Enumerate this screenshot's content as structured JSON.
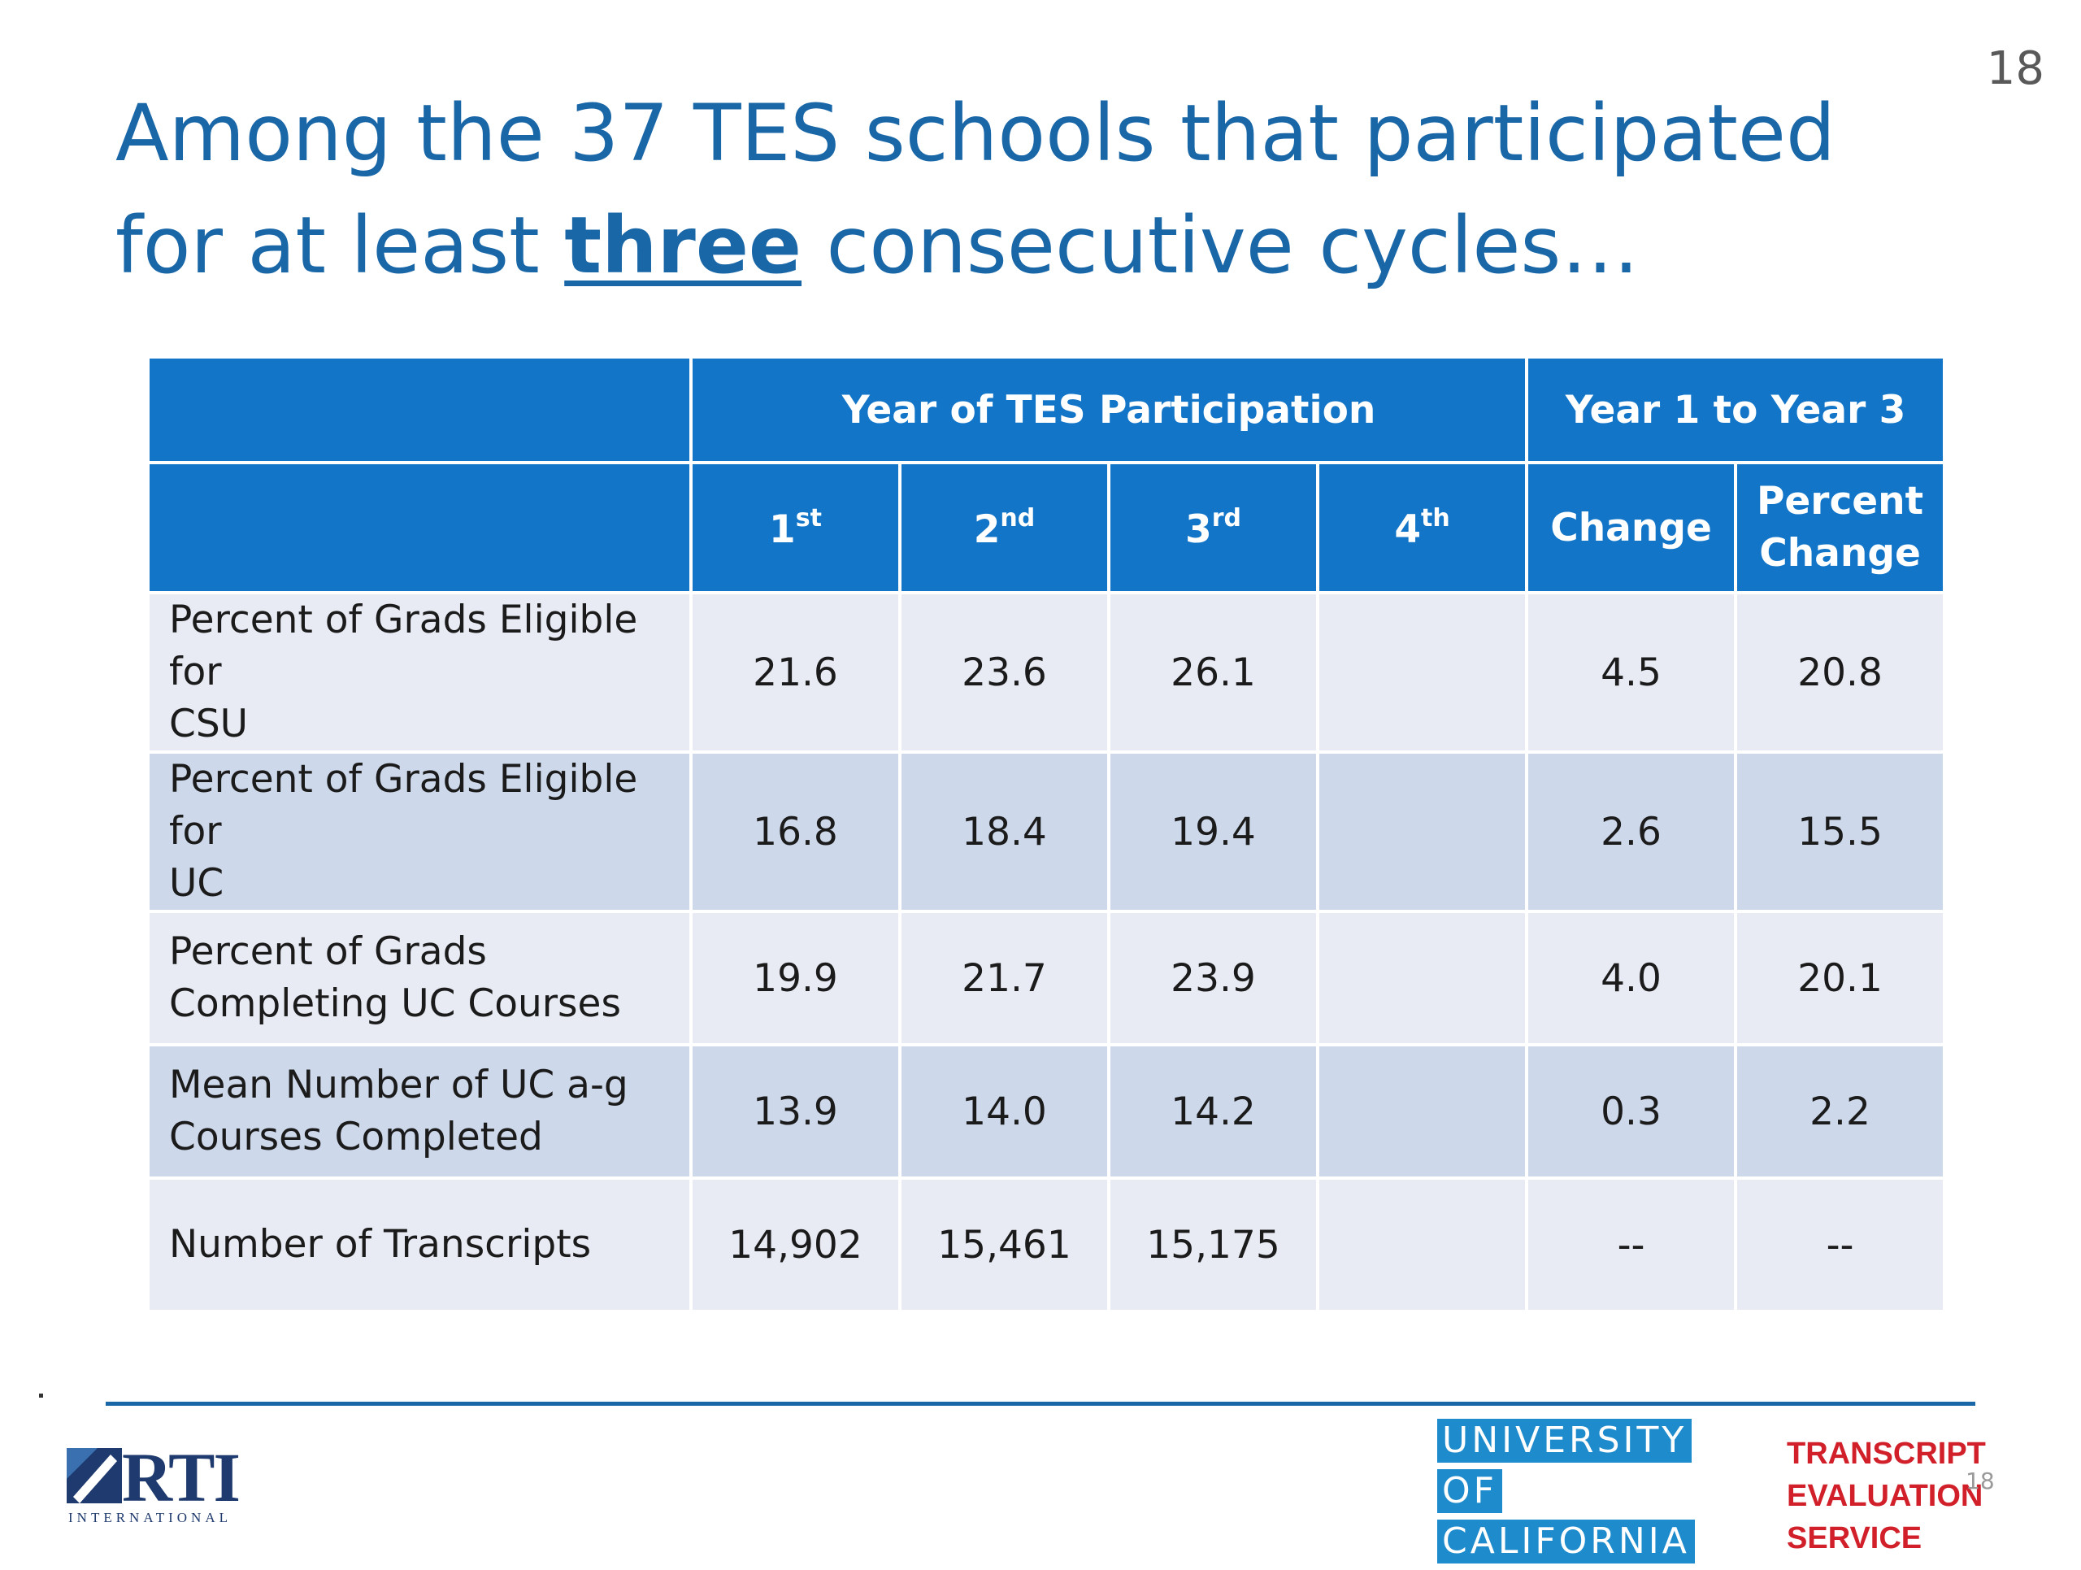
{
  "page_number": "18",
  "title": {
    "before": "Among the 37 TES schools that participated for at least ",
    "emphasis": "three",
    "after": " consecutive cycles…"
  },
  "table": {
    "group_headers": [
      "Year of TES Participation",
      "Year 1 to Year 3"
    ],
    "columns": [
      {
        "num": "1",
        "sup": "st"
      },
      {
        "num": "2",
        "sup": "nd"
      },
      {
        "num": "3",
        "sup": "rd"
      },
      {
        "num": "4",
        "sup": "th"
      }
    ],
    "change_header": "Change",
    "percent_change_header": {
      "line1": "Percent",
      "line2": "Change"
    },
    "rows": [
      {
        "label": {
          "line1": "Percent of Grads Eligible for",
          "line2": "CSU"
        },
        "values": [
          "21.6",
          "23.6",
          "26.1",
          "",
          "4.5",
          "20.8"
        ]
      },
      {
        "label": {
          "line1": "Percent of Grads Eligible for",
          "line2": "UC"
        },
        "values": [
          "16.8",
          "18.4",
          "19.4",
          "",
          "2.6",
          "15.5"
        ]
      },
      {
        "label": {
          "line1": "Percent of Grads",
          "line2": "Completing UC Courses"
        },
        "values": [
          "19.9",
          "21.7",
          "23.9",
          "",
          "4.0",
          "20.1"
        ]
      },
      {
        "label": {
          "line1": "Mean Number of UC a-g",
          "line2": "Courses Completed"
        },
        "values": [
          "13.9",
          "14.0",
          "14.2",
          "",
          "0.3",
          "2.2"
        ]
      },
      {
        "label": {
          "line1": "Number of Transcripts",
          "line2": ""
        },
        "values": [
          "14,902",
          "15,461",
          "15,175",
          "",
          "--",
          "--"
        ]
      }
    ]
  },
  "footer": {
    "rti_wordmark": "RTI",
    "rti_subline": "INTERNATIONAL",
    "uc_lines": [
      "UNIVERSITY",
      "OF",
      "CALIFORNIA"
    ],
    "tes_lines": [
      "TRANSCRIPT",
      "EVALUATION",
      "SERVICE"
    ],
    "small_page_number": "18"
  },
  "colors": {
    "title": "#1a67a8",
    "header_fill": "#1275c8",
    "row_light": "#e8ebf4",
    "row_dark": "#cdd8ea",
    "uc_blue": "#1e8bcc",
    "tes_red": "#d1202a"
  }
}
